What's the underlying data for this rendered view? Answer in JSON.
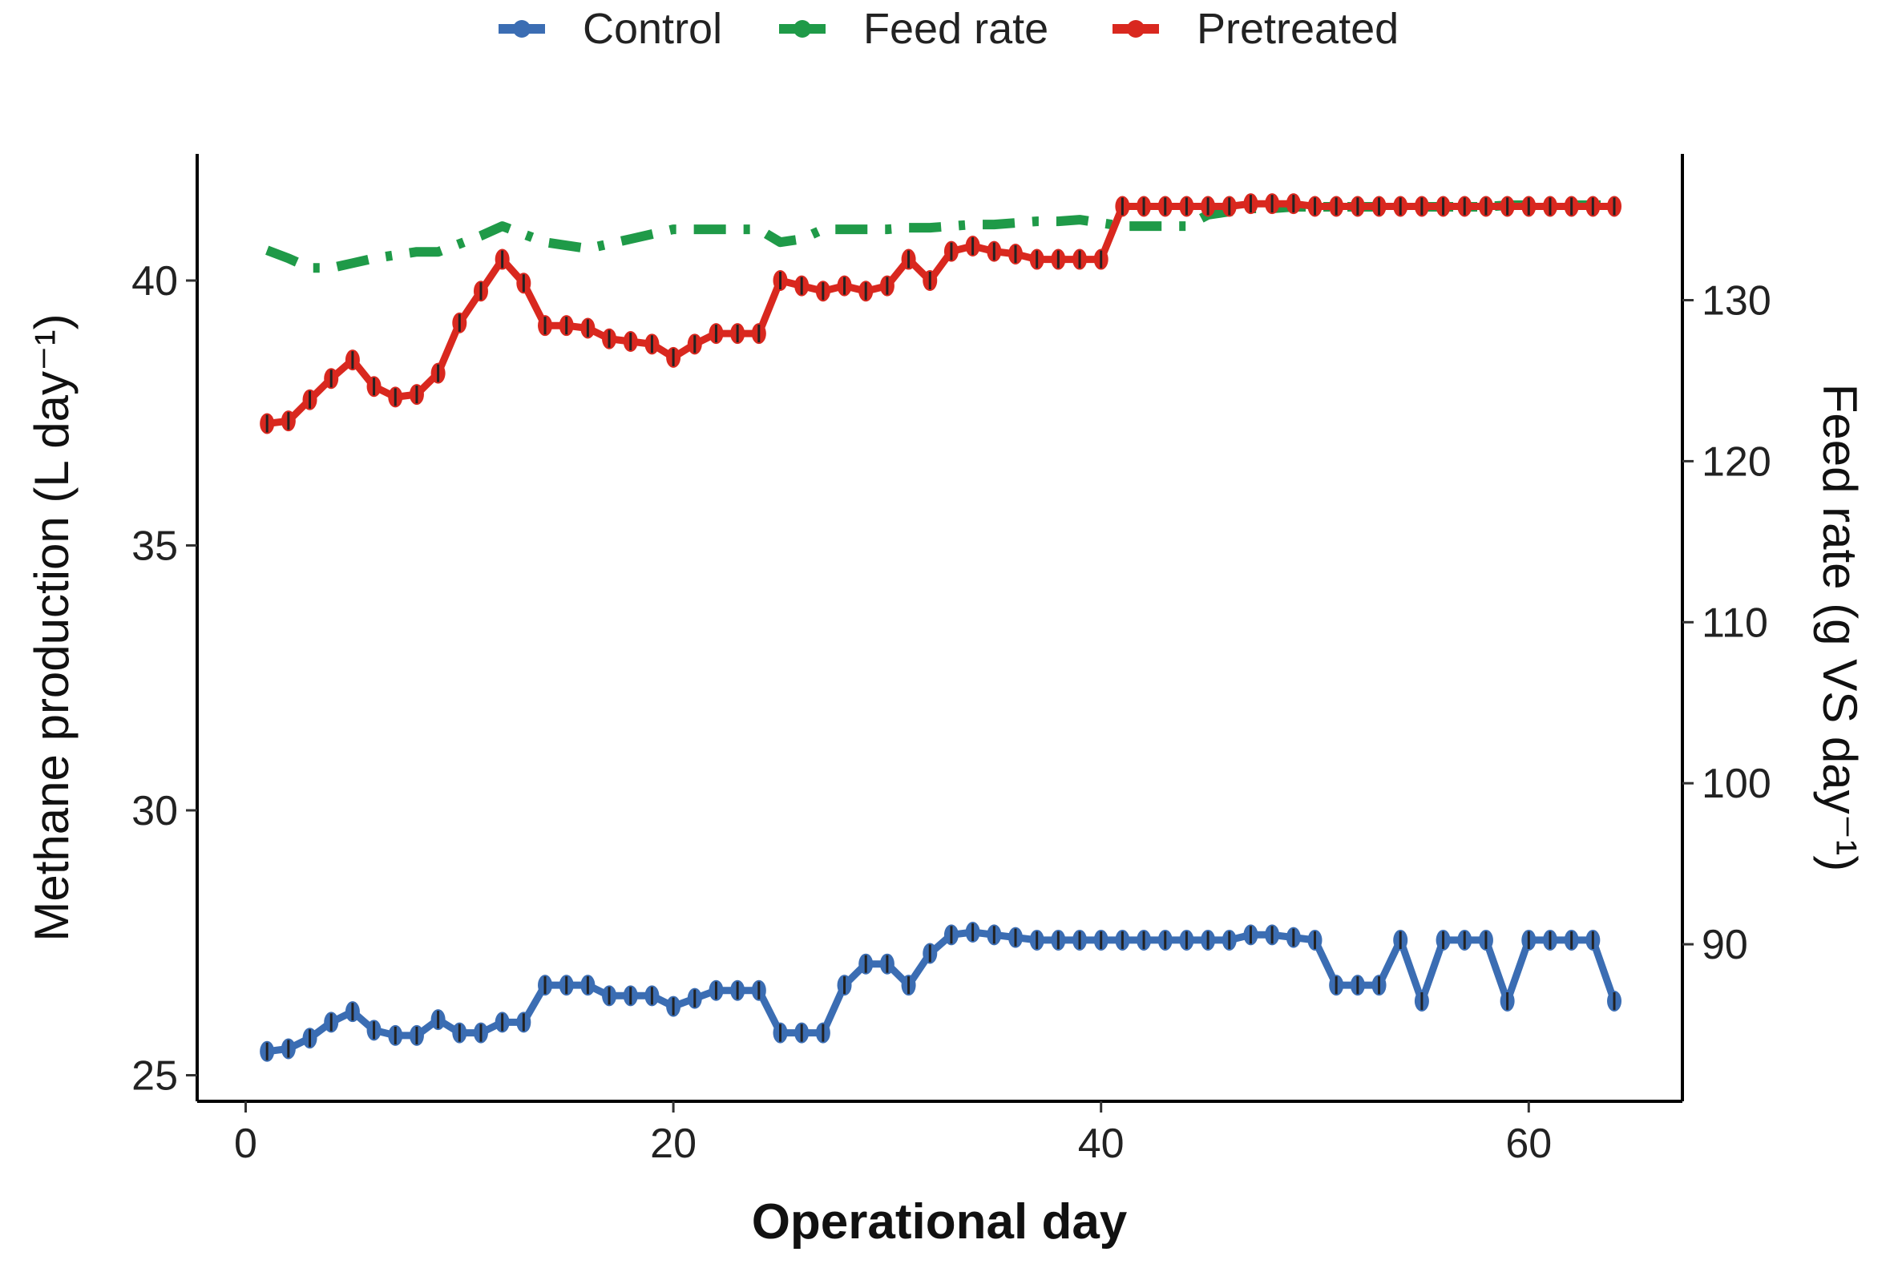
{
  "chart_data": {
    "type": "line",
    "xlabel": "Operational day",
    "ylabel": "Methane production (L day⁻¹)",
    "y2label": "Feed rate (g VS day⁻¹)",
    "xlim": [
      -0.5,
      66
    ],
    "ylim": [
      24.5,
      42.3
    ],
    "y2lim": [
      81.4,
      140
    ],
    "xticks": [
      0,
      20,
      40,
      60
    ],
    "yticks": [
      25,
      30,
      35,
      40
    ],
    "y2ticks": [
      90,
      100,
      110,
      120,
      130
    ],
    "grid": false,
    "legend_position": "top",
    "x": [
      1,
      2,
      3,
      4,
      5,
      6,
      7,
      8,
      9,
      10,
      11,
      12,
      13,
      14,
      15,
      16,
      17,
      18,
      19,
      20,
      21,
      22,
      23,
      24,
      25,
      26,
      27,
      28,
      29,
      30,
      31,
      32,
      33,
      34,
      35,
      36,
      37,
      38,
      39,
      40,
      41,
      42,
      43,
      44,
      45,
      46,
      47,
      48,
      49,
      50,
      51,
      52,
      53,
      54,
      55,
      56,
      57,
      58,
      59,
      60,
      61,
      62,
      63,
      64
    ],
    "series": [
      {
        "name": "Control",
        "axis": "left",
        "color": "#3b6db3",
        "style": "solid-points",
        "values": [
          25.45,
          25.5,
          25.7,
          26.0,
          26.2,
          25.85,
          25.75,
          25.75,
          26.05,
          25.8,
          25.8,
          26.0,
          26.0,
          26.7,
          26.7,
          26.7,
          26.5,
          26.5,
          26.5,
          26.3,
          26.45,
          26.6,
          26.6,
          26.6,
          25.8,
          25.8,
          25.8,
          26.7,
          27.1,
          27.1,
          26.7,
          27.3,
          27.65,
          27.7,
          27.65,
          27.6,
          27.55,
          27.55,
          27.55,
          27.55,
          27.55,
          27.55,
          27.55,
          27.55,
          27.55,
          27.55,
          27.65,
          27.65,
          27.6,
          27.55,
          26.7,
          26.7,
          26.7,
          27.55,
          26.4,
          27.55,
          27.55,
          27.55,
          26.4,
          27.55,
          27.55,
          27.55,
          27.55,
          26.4
        ]
      },
      {
        "name": "Feed rate",
        "axis": "right",
        "color": "#1f9a48",
        "style": "dash-dot",
        "values": [
          133.1,
          132.6,
          132.0,
          132.0,
          132.3,
          132.6,
          132.8,
          133.0,
          133.0,
          133.5,
          134.0,
          134.6,
          134.1,
          133.6,
          133.4,
          133.2,
          133.5,
          133.8,
          134.1,
          134.4,
          134.4,
          134.4,
          134.4,
          134.4,
          133.6,
          133.8,
          134.4,
          134.4,
          134.4,
          134.4,
          134.5,
          134.5,
          134.6,
          134.7,
          134.7,
          134.8,
          134.9,
          134.9,
          135.0,
          134.8,
          134.6,
          134.6,
          134.6,
          134.6,
          135.3,
          135.5,
          135.7,
          135.7,
          135.8,
          135.8,
          135.8,
          135.8,
          135.8,
          135.8,
          135.8,
          135.8,
          135.8,
          135.8,
          135.9,
          135.9,
          135.9,
          135.9,
          135.9,
          135.9
        ]
      },
      {
        "name": "Pretreated",
        "axis": "left",
        "color": "#d9281f",
        "style": "solid-points",
        "values": [
          37.3,
          37.35,
          37.75,
          38.15,
          38.5,
          38.0,
          37.8,
          37.85,
          38.25,
          39.2,
          39.8,
          40.4,
          39.95,
          39.15,
          39.15,
          39.1,
          38.9,
          38.85,
          38.8,
          38.55,
          38.8,
          39.0,
          39.0,
          39.0,
          40.0,
          39.9,
          39.8,
          39.9,
          39.8,
          39.9,
          40.4,
          40.0,
          40.55,
          40.65,
          40.55,
          40.5,
          40.4,
          40.4,
          40.4,
          40.4,
          41.4,
          41.4,
          41.4,
          41.4,
          41.4,
          41.4,
          41.45,
          41.45,
          41.45,
          41.4,
          41.4,
          41.4,
          41.4,
          41.4,
          41.4,
          41.4,
          41.4,
          41.4,
          41.4,
          41.4,
          41.4,
          41.4,
          41.4,
          41.4
        ]
      }
    ]
  }
}
